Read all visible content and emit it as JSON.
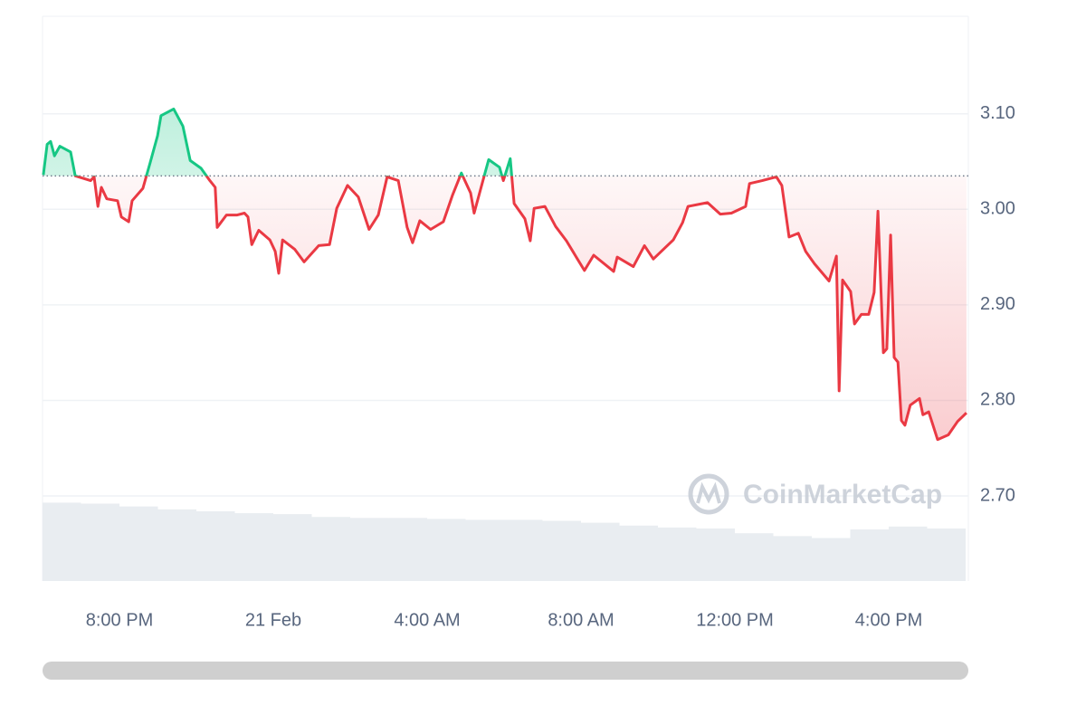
{
  "chart_data": {
    "type": "line",
    "watermark": "CoinMarketCap",
    "baseline": 3.035,
    "up_color": "#16c784",
    "down_color": "#ea3943",
    "volume_color": "#e9edf1",
    "xlim": [
      18,
      42.07
    ],
    "ylim": [
      2.611,
      3.202
    ],
    "xticks": [
      {
        "value": 20,
        "label": "8:00 PM"
      },
      {
        "value": 24,
        "label": "21 Feb"
      },
      {
        "value": 28,
        "label": "4:00 AM"
      },
      {
        "value": 32,
        "label": "8:00 AM"
      },
      {
        "value": 36,
        "label": "12:00 PM"
      },
      {
        "value": 40,
        "label": "4:00 PM"
      }
    ],
    "yticks": [
      {
        "value": 2.7,
        "label": "2.70"
      },
      {
        "value": 2.8,
        "label": "2.80"
      },
      {
        "value": 2.9,
        "label": "2.90"
      },
      {
        "value": 3.0,
        "label": "3.00"
      },
      {
        "value": 3.1,
        "label": "3.10"
      }
    ],
    "grid": true,
    "x": [
      18.02,
      18.12,
      18.21,
      18.31,
      18.45,
      18.73,
      18.85,
      19.25,
      19.34,
      19.44,
      19.53,
      19.67,
      19.95,
      20.05,
      20.24,
      20.33,
      20.61,
      20.8,
      20.99,
      21.08,
      21.41,
      21.65,
      21.84,
      22.12,
      22.35,
      22.49,
      22.54,
      22.78,
      23.06,
      23.25,
      23.34,
      23.44,
      23.62,
      23.91,
      24.05,
      24.14,
      24.24,
      24.56,
      24.8,
      25.18,
      25.46,
      25.65,
      25.93,
      26.21,
      26.49,
      26.73,
      26.96,
      27.25,
      27.48,
      27.62,
      27.81,
      28.09,
      28.42,
      28.66,
      28.89,
      29.13,
      29.22,
      29.51,
      29.6,
      29.88,
      29.98,
      30.16,
      30.26,
      30.54,
      30.68,
      30.78,
      31.06,
      31.34,
      31.62,
      31.86,
      32.09,
      32.33,
      32.85,
      32.94,
      33.36,
      33.65,
      33.88,
      34.4,
      34.64,
      34.78,
      35.29,
      35.62,
      35.91,
      36.28,
      36.38,
      36.71,
      37.08,
      37.22,
      37.41,
      37.65,
      37.84,
      38.07,
      38.45,
      38.64,
      38.71,
      38.8,
      39.01,
      39.11,
      39.29,
      39.48,
      39.62,
      39.72,
      39.86,
      39.95,
      40.05,
      40.14,
      40.24,
      40.33,
      40.42,
      40.56,
      40.8,
      40.89,
      41.04,
      41.27,
      41.55,
      41.79,
      42.02
    ],
    "values": [
      3.036,
      3.068,
      3.071,
      3.056,
      3.066,
      3.06,
      3.035,
      3.03,
      3.034,
      3.003,
      3.023,
      3.011,
      3.009,
      2.992,
      2.987,
      3.009,
      3.022,
      3.049,
      3.077,
      3.098,
      3.105,
      3.087,
      3.051,
      3.043,
      3.03,
      3.023,
      2.981,
      2.994,
      2.994,
      2.996,
      2.992,
      2.963,
      2.978,
      2.968,
      2.956,
      2.933,
      2.968,
      2.958,
      2.945,
      2.962,
      2.963,
      3.001,
      3.025,
      3.013,
      2.979,
      2.994,
      3.034,
      3.03,
      2.981,
      2.965,
      2.988,
      2.979,
      2.987,
      3.015,
      3.038,
      3.017,
      2.996,
      3.039,
      3.052,
      3.044,
      3.03,
      3.053,
      3.006,
      2.99,
      2.967,
      3.001,
      3.003,
      2.982,
      2.967,
      2.951,
      2.936,
      2.952,
      2.935,
      2.95,
      2.94,
      2.962,
      2.948,
      2.968,
      2.986,
      3.003,
      3.007,
      2.995,
      2.996,
      3.003,
      3.027,
      3.03,
      3.034,
      3.025,
      2.971,
      2.975,
      2.956,
      2.943,
      2.925,
      2.951,
      2.81,
      2.926,
      2.914,
      2.88,
      2.89,
      2.89,
      2.913,
      2.998,
      2.85,
      2.854,
      2.973,
      2.845,
      2.84,
      2.779,
      2.774,
      2.795,
      2.802,
      2.785,
      2.788,
      2.759,
      2.764,
      2.778,
      2.787
    ],
    "volume": {
      "x": [
        18,
        19,
        20,
        21,
        22,
        23,
        24,
        25,
        26,
        27,
        28,
        29,
        30,
        31,
        32,
        33,
        34,
        35,
        36,
        37,
        38,
        39,
        40,
        41
      ],
      "values": [
        2.693,
        2.692,
        2.689,
        2.686,
        2.684,
        2.682,
        2.681,
        2.678,
        2.677,
        2.677,
        2.676,
        2.675,
        2.675,
        2.674,
        2.672,
        2.669,
        2.667,
        2.666,
        2.661,
        2.658,
        2.656,
        2.665,
        2.668,
        2.666
      ]
    }
  }
}
